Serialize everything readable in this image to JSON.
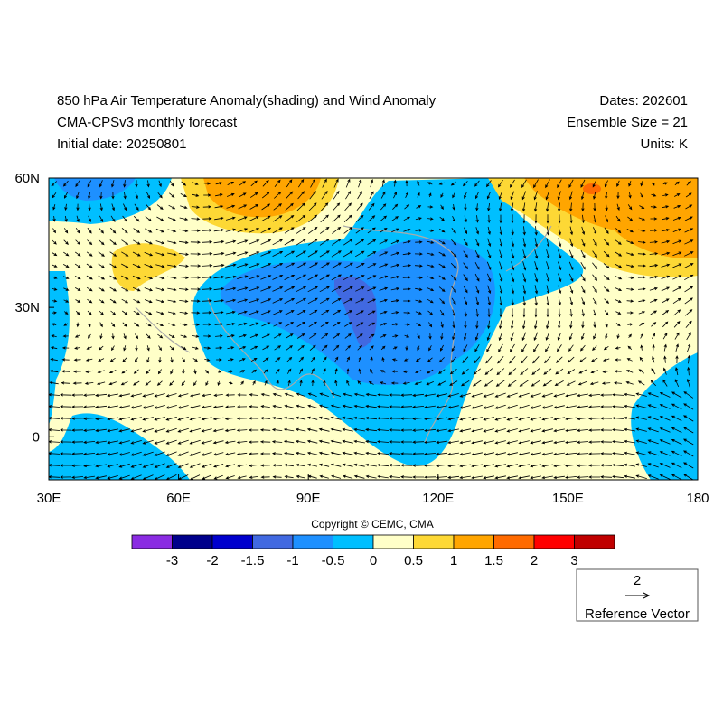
{
  "header": {
    "title": "850 hPa Air Temperature Anomaly(shading) and Wind Anomaly",
    "subtitle": "CMA-CPSv3 monthly forecast",
    "initial_date": "Initial date: 20250801",
    "dates": "Dates: 202601",
    "ensemble": "Ensemble Size = 21",
    "units": "Units: K"
  },
  "map": {
    "lon_range": [
      30,
      180
    ],
    "lat_range": [
      -10,
      60
    ],
    "lon_ticks": [
      {
        "value": 30,
        "label": "30E"
      },
      {
        "value": 60,
        "label": "60E"
      },
      {
        "value": 90,
        "label": "90E"
      },
      {
        "value": 120,
        "label": "120E"
      },
      {
        "value": 150,
        "label": "150E"
      },
      {
        "value": 180,
        "label": "180"
      }
    ],
    "lat_ticks": [
      {
        "value": 60,
        "label": "60N"
      },
      {
        "value": 30,
        "label": "30N"
      },
      {
        "value": 0,
        "label": "0"
      }
    ]
  },
  "copyright": "Copyright © CEMC, CMA",
  "colorbar": {
    "colors": [
      "#8a2be2",
      "#00008b",
      "#0000cd",
      "#4169e1",
      "#1e90ff",
      "#00bfff",
      "#ffffc8",
      "#fdd835",
      "#ffa500",
      "#ff6a00",
      "#ff0000",
      "#c00000"
    ],
    "levels": [
      -3,
      -2,
      -1.5,
      -1,
      -0.5,
      0,
      0.5,
      1,
      1.5,
      2,
      3
    ]
  },
  "reference_vector": {
    "magnitude": 2,
    "label": "Reference Vector"
  }
}
